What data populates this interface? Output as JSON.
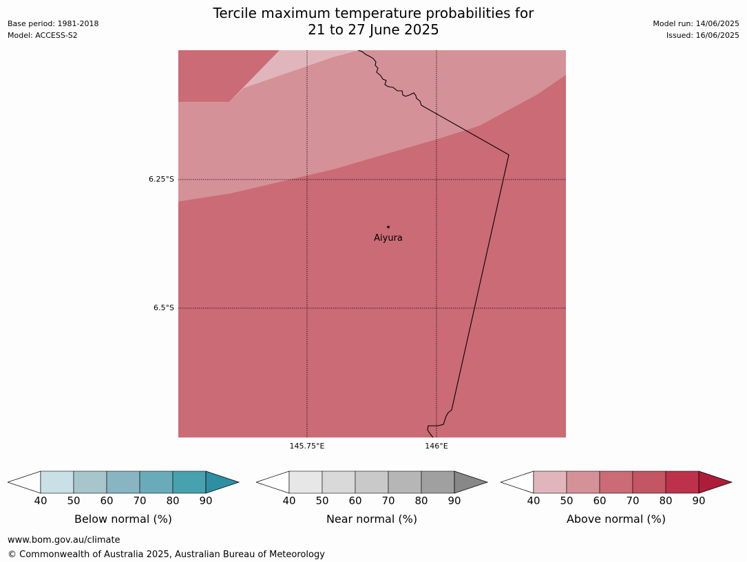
{
  "header": {
    "title_line1": "Tercile maximum temperature probabilities for",
    "title_line2": "21 to 27 June 2025",
    "base_period": "Base period: 1981-2018",
    "model": "Model: ACCESS-S2",
    "model_run": "Model run: 14/06/2025",
    "issued": "Issued: 16/06/2025"
  },
  "map": {
    "place_label": "Aiyura",
    "lat_labels": [
      "6.25°S",
      "6.5°S"
    ],
    "lon_labels": [
      "145.75°E",
      "146°E"
    ],
    "gridlines": true,
    "colors": {
      "above_40_50": "#e0b6bc",
      "above_50_60": "#d59198",
      "above_60_70": "#ca6b75",
      "border_line": "#000000"
    }
  },
  "colorbars": [
    {
      "id": "below",
      "label": "Below normal (%)",
      "ticks": [
        "40",
        "50",
        "60",
        "70",
        "80",
        "90"
      ],
      "colors": [
        "#c9e1e6",
        "#a6c6cb",
        "#88b5c1",
        "#6aabb9",
        "#48a1ae",
        "#2d8fa1"
      ]
    },
    {
      "id": "near",
      "label": "Near normal (%)",
      "ticks": [
        "40",
        "50",
        "60",
        "70",
        "80",
        "90"
      ],
      "colors": [
        "#e7e7e7",
        "#d9d9d9",
        "#c9c9c9",
        "#b6b6b6",
        "#a0a0a0",
        "#888888"
      ]
    },
    {
      "id": "above",
      "label": "Above normal (%)",
      "ticks": [
        "40",
        "50",
        "60",
        "70",
        "80",
        "90"
      ],
      "colors": [
        "#e0b6bc",
        "#d59198",
        "#ca6b75",
        "#c45563",
        "#bd314a",
        "#ad1d3a"
      ]
    }
  ],
  "footer": {
    "website": "www.bom.gov.au/climate",
    "copyright": "© Commonwealth of Australia 2025, Australian Bureau of Meteorology"
  }
}
